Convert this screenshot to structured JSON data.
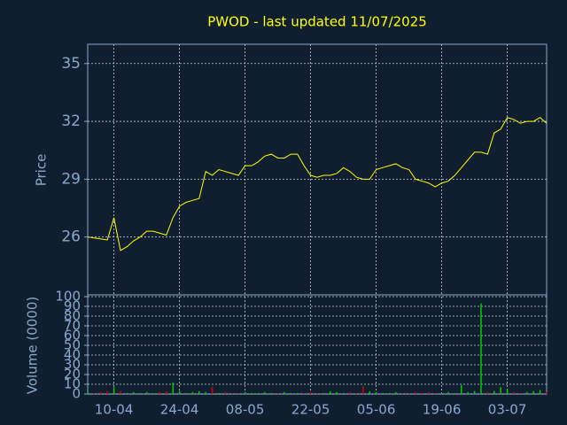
{
  "chart_data": [
    {
      "type": "line",
      "title": "PWOD - last updated 11/07/2025",
      "y_label": "Price",
      "color": "#ffff00",
      "values": [
        26.0,
        25.95,
        25.9,
        25.85,
        27.0,
        25.3,
        25.5,
        25.8,
        26.0,
        26.3,
        26.3,
        26.2,
        26.1,
        27.0,
        27.6,
        27.8,
        27.9,
        28.0,
        29.4,
        29.2,
        29.5,
        29.4,
        29.3,
        29.2,
        29.7,
        29.7,
        29.9,
        30.2,
        30.3,
        30.1,
        30.1,
        30.3,
        30.3,
        29.7,
        29.2,
        29.1,
        29.2,
        29.2,
        29.3,
        29.6,
        29.4,
        29.1,
        29.0,
        29.0,
        29.5,
        29.6,
        29.7,
        29.8,
        29.6,
        29.5,
        29.0,
        28.9,
        28.8,
        28.6,
        28.8,
        28.9,
        29.2,
        29.6,
        30.0,
        30.4,
        30.4,
        30.3,
        31.4,
        31.6,
        32.2,
        32.1,
        31.9,
        32.0,
        32.0,
        32.2,
        31.9
      ],
      "ylim": [
        23,
        36
      ],
      "yticks": [
        26,
        29,
        32,
        35
      ],
      "grid": true
    },
    {
      "type": "bar",
      "y_label": "Volume (0000)",
      "up_color": "#00cc00",
      "down_color": "#dd0000",
      "categories": [
        null,
        null,
        null,
        null,
        "10-04",
        null,
        null,
        null,
        null,
        null,
        null,
        null,
        null,
        null,
        "24-04",
        null,
        null,
        null,
        null,
        null,
        null,
        null,
        null,
        null,
        "08-05",
        null,
        null,
        null,
        null,
        null,
        null,
        null,
        null,
        null,
        "22-05",
        null,
        null,
        null,
        null,
        null,
        null,
        null,
        null,
        null,
        "05-06",
        null,
        null,
        null,
        null,
        null,
        null,
        null,
        null,
        null,
        "19-06",
        null,
        null,
        null,
        null,
        null,
        null,
        null,
        null,
        null,
        "03-07",
        null,
        null,
        null,
        null,
        null,
        null
      ],
      "values": [
        2,
        1,
        2,
        3,
        7,
        3,
        1,
        2,
        1,
        2,
        1,
        2,
        3,
        12,
        3,
        1,
        2,
        3,
        2,
        7,
        1,
        2,
        1,
        1,
        2,
        1,
        1,
        2,
        1,
        1,
        2,
        1,
        1,
        1,
        2,
        1,
        1,
        3,
        2,
        1,
        2,
        1,
        8,
        3,
        2,
        1,
        1,
        2,
        1,
        1,
        2,
        1,
        2,
        1,
        1,
        2,
        1,
        9,
        2,
        3,
        93,
        2,
        3,
        7,
        5,
        2,
        1,
        2,
        3,
        4,
        2
      ],
      "ylim": [
        0,
        100
      ],
      "yticks": [
        0,
        10,
        20,
        30,
        40,
        50,
        60,
        70,
        80,
        90,
        100
      ],
      "grid": true
    }
  ]
}
